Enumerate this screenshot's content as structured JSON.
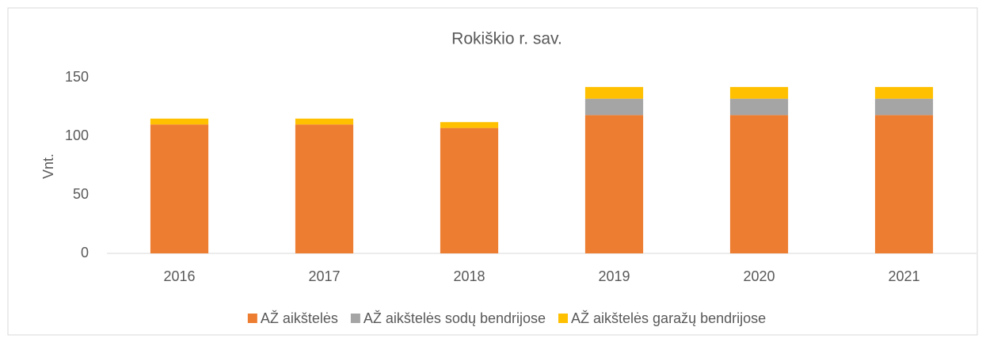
{
  "chart_data": {
    "type": "bar",
    "stacked": true,
    "title": "Rokiškio r. sav.",
    "y_label": "Vnt.",
    "categories": [
      "2016",
      "2017",
      "2018",
      "2019",
      "2020",
      "2021"
    ],
    "series": [
      {
        "name": "AŽ aikštelės",
        "color": "#ed7d31",
        "values": [
          110,
          110,
          107,
          118,
          118,
          118
        ]
      },
      {
        "name": "AŽ aikštelės sodų bendrijose",
        "color": "#a5a5a5",
        "values": [
          0,
          0,
          0,
          14,
          14,
          14
        ]
      },
      {
        "name": "AŽ aikštelės garažų bendrijose",
        "color": "#ffc000",
        "values": [
          5,
          5,
          5,
          10,
          10,
          10
        ]
      }
    ],
    "ylim": [
      0,
      150
    ],
    "yticks": [
      0,
      50,
      100,
      150
    ],
    "grid": false,
    "legend": "bottom"
  }
}
